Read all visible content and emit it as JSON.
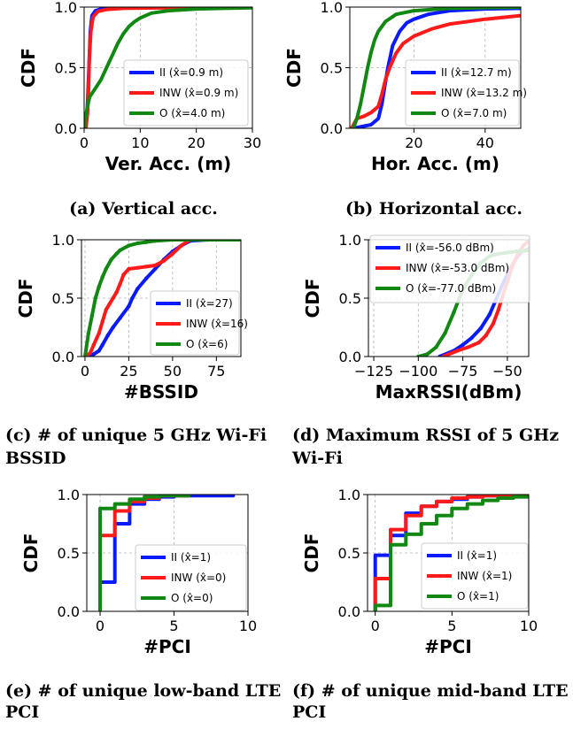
{
  "colors": {
    "II": "#0a1aff",
    "INW": "#ff1a1a",
    "O": "#118811"
  },
  "chart_data": [
    {
      "id": "a",
      "type": "line",
      "caption": [
        "(a) Vertical acc."
      ],
      "xlabel": "Ver. Acc. (m)",
      "ylabel": "CDF",
      "xlim": [
        0,
        30
      ],
      "ylim": [
        0,
        1
      ],
      "xticks": [
        0,
        10,
        20,
        30
      ],
      "xtick_labels": [
        "0",
        "10",
        "20",
        "30"
      ],
      "yticks": [
        0,
        0.5,
        1
      ],
      "ytick_labels": [
        "0.0",
        "0.5",
        "1.0"
      ],
      "grid": true,
      "legend_position": "lower-right",
      "series": [
        {
          "key": "II",
          "name": "II (x̂=0.9 m)",
          "x": [
            0.2,
            0.5,
            0.7,
            0.9,
            1.1,
            1.4,
            2,
            3,
            5,
            10,
            30
          ],
          "y": [
            0,
            0.1,
            0.3,
            0.55,
            0.8,
            0.93,
            0.97,
            0.985,
            0.993,
            0.998,
            1
          ]
        },
        {
          "key": "INW",
          "name": "INW (x̂=0.9 m)",
          "x": [
            0.3,
            0.6,
            0.8,
            0.9,
            1.2,
            1.6,
            2.5,
            4,
            7,
            15,
            30
          ],
          "y": [
            0,
            0.12,
            0.35,
            0.55,
            0.8,
            0.92,
            0.965,
            0.98,
            0.99,
            0.995,
            1
          ]
        },
        {
          "key": "O",
          "name": "O (x̂=4.0 m)",
          "x": [
            0,
            0.1,
            0.6,
            1,
            2,
            3,
            4,
            5,
            6,
            7,
            8,
            9,
            10,
            12,
            15,
            20,
            25,
            30
          ],
          "y": [
            0,
            0.05,
            0.18,
            0.26,
            0.33,
            0.4,
            0.5,
            0.6,
            0.7,
            0.78,
            0.84,
            0.88,
            0.91,
            0.95,
            0.97,
            0.985,
            0.99,
            0.995
          ]
        }
      ]
    },
    {
      "id": "b",
      "type": "line",
      "caption": [
        "(b) Horizontal acc."
      ],
      "xlabel": "Hor. Acc. (m)",
      "ylabel": "CDF",
      "xlim": [
        2,
        50
      ],
      "ylim": [
        0,
        1
      ],
      "xticks": [
        20,
        40
      ],
      "xtick_labels": [
        "20",
        "40"
      ],
      "yticks": [
        0,
        0.5,
        1
      ],
      "ytick_labels": [
        "0.0",
        "0.5",
        "1.0"
      ],
      "grid": true,
      "legend_position": "lower-right",
      "series": [
        {
          "key": "II",
          "name": "II (x̂=12.7 m)",
          "x": [
            3,
            8,
            10,
            11,
            12,
            12.7,
            14,
            16,
            18,
            20,
            24,
            30,
            40,
            50
          ],
          "y": [
            0,
            0.03,
            0.08,
            0.2,
            0.38,
            0.5,
            0.68,
            0.8,
            0.87,
            0.9,
            0.94,
            0.97,
            0.985,
            0.99
          ]
        },
        {
          "key": "INW",
          "name": "INW (x̂=13.2 m)",
          "x": [
            2.5,
            4,
            6,
            8,
            10,
            11,
            12,
            13.2,
            15,
            17,
            20,
            25,
            30,
            40,
            50
          ],
          "y": [
            0,
            0.08,
            0.1,
            0.13,
            0.18,
            0.28,
            0.4,
            0.5,
            0.62,
            0.7,
            0.76,
            0.82,
            0.86,
            0.9,
            0.93
          ]
        },
        {
          "key": "O",
          "name": "O (x̂=7.0 m)",
          "x": [
            3,
            4,
            5,
            6,
            7,
            8,
            9,
            10,
            12,
            15,
            20,
            30,
            50
          ],
          "y": [
            0,
            0.08,
            0.2,
            0.35,
            0.5,
            0.63,
            0.73,
            0.8,
            0.88,
            0.94,
            0.97,
            0.99,
            1
          ]
        }
      ]
    },
    {
      "id": "c",
      "type": "line",
      "caption": [
        "(c) # of unique 5 GHz Wi-Fi",
        "BSSID"
      ],
      "xlabel": "#BSSID",
      "ylabel": "CDF",
      "xlim": [
        -2,
        89
      ],
      "ylim": [
        0,
        1
      ],
      "xticks": [
        0,
        25,
        50,
        75
      ],
      "xtick_labels": [
        "0",
        "25",
        "50",
        "75"
      ],
      "yticks": [
        0,
        0.5,
        1
      ],
      "ytick_labels": [
        "0.0",
        "0.5",
        "1.0"
      ],
      "grid": true,
      "legend_position": "lower-right",
      "series": [
        {
          "key": "II",
          "name": "II (x̂=27)",
          "x": [
            0,
            5,
            8,
            10,
            13,
            16,
            20,
            25,
            27,
            30,
            35,
            40,
            45,
            50,
            55,
            60,
            70,
            89
          ],
          "y": [
            0,
            0.02,
            0.05,
            0.1,
            0.18,
            0.25,
            0.33,
            0.43,
            0.5,
            0.58,
            0.67,
            0.75,
            0.83,
            0.9,
            0.95,
            0.99,
            1,
            1
          ]
        },
        {
          "key": "INW",
          "name": "INW (x̂=16)",
          "x": [
            0,
            3,
            5,
            8,
            10,
            12,
            14,
            16,
            18,
            20,
            22,
            25,
            30,
            35,
            40,
            45,
            50,
            55,
            60,
            89
          ],
          "y": [
            0,
            0.03,
            0.1,
            0.2,
            0.3,
            0.4,
            0.45,
            0.5,
            0.55,
            0.62,
            0.7,
            0.75,
            0.76,
            0.77,
            0.78,
            0.82,
            0.88,
            0.95,
            1,
            1
          ]
        },
        {
          "key": "O",
          "name": "O (x̂=6)",
          "x": [
            0,
            2,
            4,
            6,
            8,
            10,
            12,
            15,
            18,
            20,
            25,
            30,
            35,
            40,
            50,
            60,
            70,
            89
          ],
          "y": [
            0,
            0.2,
            0.35,
            0.5,
            0.6,
            0.68,
            0.75,
            0.83,
            0.88,
            0.91,
            0.95,
            0.97,
            0.98,
            0.99,
            1,
            1,
            1,
            1
          ]
        }
      ]
    },
    {
      "id": "d",
      "type": "line",
      "caption": [
        "(d) Maximum RSSI of 5 GHz",
        "Wi-Fi"
      ],
      "xlabel": "MaxRSSI(dBm)",
      "ylabel": "CDF",
      "xlim": [
        -128,
        -38
      ],
      "ylim": [
        0,
        1
      ],
      "xticks": [
        -125,
        -100,
        -75,
        -50
      ],
      "xtick_labels": [
        "−125",
        "−100",
        "−75",
        "−50"
      ],
      "yticks": [
        0,
        0.5,
        1
      ],
      "ytick_labels": [
        "0.0",
        "0.5",
        "1.0"
      ],
      "grid": true,
      "legend_position": "top-right",
      "series": [
        {
          "key": "II",
          "name": "II (x̂=-56.0 dBm)",
          "x": [
            -88,
            -80,
            -75,
            -70,
            -65,
            -60,
            -56,
            -52,
            -48,
            -45,
            -42,
            -38
          ],
          "y": [
            0,
            0.05,
            0.1,
            0.16,
            0.24,
            0.36,
            0.5,
            0.64,
            0.76,
            0.84,
            0.9,
            0.92
          ]
        },
        {
          "key": "INW",
          "name": "INW (x̂=-53.0 dBm)",
          "x": [
            -86,
            -78,
            -72,
            -66,
            -62,
            -58,
            -55,
            -53,
            -50,
            -47,
            -44,
            -41,
            -38
          ],
          "y": [
            0,
            0.05,
            0.08,
            0.12,
            0.18,
            0.28,
            0.4,
            0.5,
            0.64,
            0.78,
            0.88,
            0.95,
            0.99
          ]
        },
        {
          "key": "O",
          "name": "O (x̂=-77.0 dBm)",
          "x": [
            -100,
            -95,
            -90,
            -85,
            -80,
            -77,
            -74,
            -70,
            -65,
            -60,
            -55,
            -50,
            -45,
            -38
          ],
          "y": [
            0,
            0.02,
            0.08,
            0.2,
            0.38,
            0.5,
            0.6,
            0.7,
            0.8,
            0.86,
            0.88,
            0.89,
            0.9,
            0.91
          ]
        }
      ]
    },
    {
      "id": "e",
      "type": "line",
      "caption": [
        "(e) # of unique low-band LTE",
        "PCI"
      ],
      "xlabel": "#PCI",
      "ylabel": "CDF",
      "xlim": [
        -0.9,
        10
      ],
      "ylim": [
        0,
        1
      ],
      "xticks": [
        0,
        5,
        10
      ],
      "xtick_labels": [
        "0",
        "5",
        "10"
      ],
      "yticks": [
        0,
        0.5,
        1
      ],
      "ytick_labels": [
        "0.0",
        "0.5",
        "1.0"
      ],
      "grid": true,
      "legend_position": "lower-right",
      "series": [
        {
          "key": "II",
          "name": "II (x̂=1)",
          "x": [
            0,
            1,
            2,
            3,
            4,
            5,
            9
          ],
          "y": [
            0.25,
            0.75,
            0.92,
            0.96,
            0.98,
            0.99,
            1
          ]
        },
        {
          "key": "INW",
          "name": "INW (x̂=0)",
          "x": [
            0,
            1,
            2,
            3,
            4,
            6
          ],
          "y": [
            0.65,
            0.86,
            0.94,
            0.97,
            0.99,
            1
          ]
        },
        {
          "key": "O",
          "name": "O (x̂=0)",
          "x": [
            0,
            1,
            2,
            3,
            4,
            6
          ],
          "y": [
            0.88,
            0.92,
            0.96,
            0.98,
            0.99,
            1
          ]
        }
      ]
    },
    {
      "id": "f",
      "type": "line",
      "caption": [
        "(f) # of unique mid-band LTE",
        "PCI"
      ],
      "xlabel": "#PCI",
      "ylabel": "CDF",
      "xlim": [
        -0.5,
        10
      ],
      "ylim": [
        0,
        1
      ],
      "xticks": [
        0,
        5,
        10
      ],
      "xtick_labels": [
        "0",
        "5",
        "10"
      ],
      "yticks": [
        0,
        0.5,
        1
      ],
      "ytick_labels": [
        "0.0",
        "0.5",
        "1.0"
      ],
      "grid": true,
      "legend_position": "lower-right",
      "series": [
        {
          "key": "II",
          "name": "II (x̂=1)",
          "x": [
            0,
            1,
            2,
            3,
            4,
            5,
            6,
            7,
            8,
            9,
            10
          ],
          "y": [
            0.48,
            0.65,
            0.84,
            0.9,
            0.94,
            0.96,
            0.98,
            0.99,
            1,
            1,
            1
          ]
        },
        {
          "key": "INW",
          "name": "INW (x̂=1)",
          "x": [
            0,
            1,
            2,
            3,
            4,
            5,
            6,
            7,
            8,
            9,
            10
          ],
          "y": [
            0.28,
            0.7,
            0.82,
            0.9,
            0.94,
            0.97,
            0.98,
            0.99,
            1,
            1,
            1
          ]
        },
        {
          "key": "O",
          "name": "O (x̂=1)",
          "x": [
            0,
            1,
            2,
            3,
            4,
            5,
            6,
            7,
            8,
            9,
            10
          ],
          "y": [
            0.05,
            0.57,
            0.66,
            0.75,
            0.82,
            0.88,
            0.92,
            0.95,
            0.97,
            0.98,
            0.99
          ]
        }
      ]
    }
  ]
}
